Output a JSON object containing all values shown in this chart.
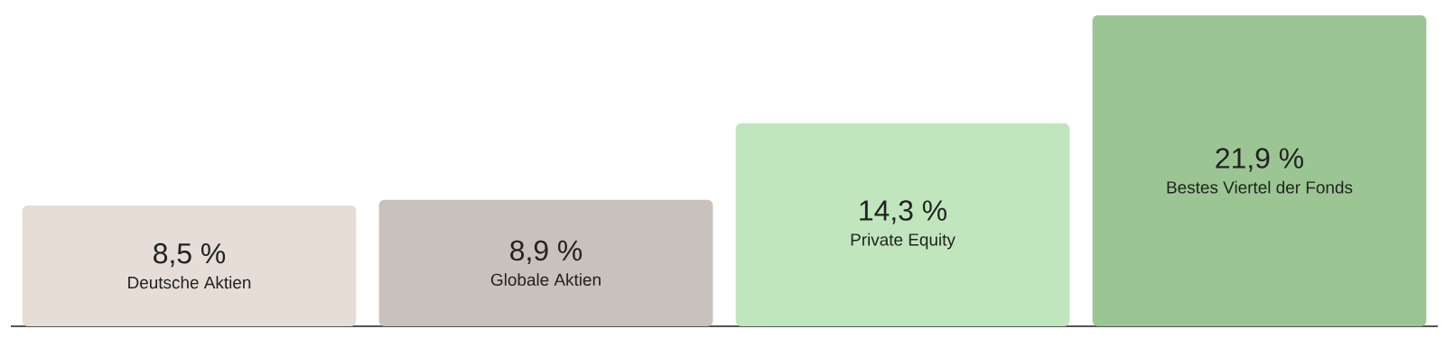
{
  "chart_data": {
    "type": "bar",
    "categories": [
      "Deutsche Aktien",
      "Globale Aktien",
      "Private Equity",
      "Bestes Viertel der Fonds"
    ],
    "values": [
      8.5,
      8.9,
      14.3,
      21.9
    ],
    "colors": [
      "#e5ddd6",
      "#c9c1bb",
      "#c1e6bd",
      "#9bc693"
    ],
    "value_labels": [
      "8,5 %",
      "8,9 %",
      "14,3 %",
      "21,9 %"
    ]
  }
}
